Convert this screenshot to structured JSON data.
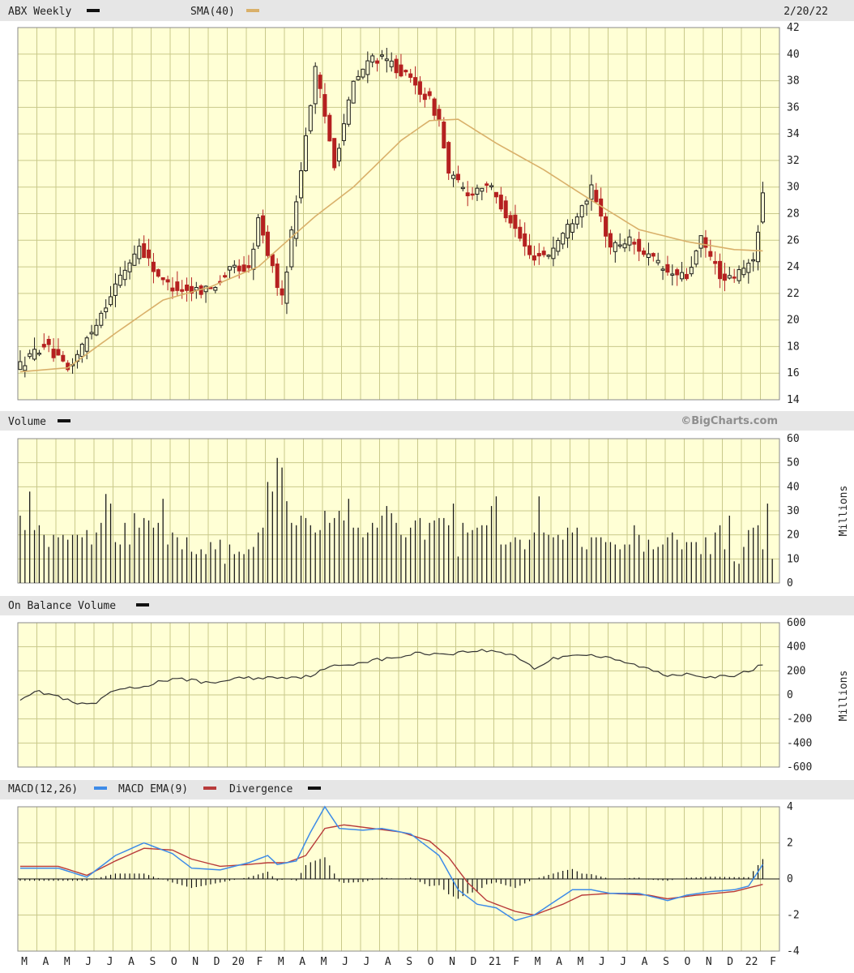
{
  "colors": {
    "up": "#1a1a1a",
    "down": "#b52020",
    "sma": "#d9b06a",
    "macd": "#3d8be8",
    "macd_ema": "#b83a3a",
    "volume": "#1a1a1a",
    "obv": "#333333",
    "plot_bg": "#ffffd5",
    "grid": "#c9c98a"
  },
  "header": {
    "symbol_label": "ABX Weekly",
    "sma_label": "SMA(40)",
    "date": "2/20/22",
    "credit": "©BigCharts.com"
  },
  "chart_data": [
    {
      "type": "candlestick",
      "title": "ABX Weekly",
      "overlay": "SMA(40)",
      "x_labels": [
        "M",
        "A",
        "M",
        "J",
        "J",
        "A",
        "S",
        "O",
        "N",
        "D",
        "20",
        "F",
        "M",
        "A",
        "M",
        "J",
        "J",
        "A",
        "S",
        "O",
        "N",
        "D",
        "21",
        "F",
        "M",
        "A",
        "M",
        "J",
        "J",
        "A",
        "S",
        "O",
        "N",
        "D",
        "22",
        "F"
      ],
      "y_ticks": [
        14,
        16,
        18,
        20,
        22,
        24,
        26,
        28,
        30,
        32,
        34,
        36,
        38,
        40,
        42
      ],
      "ylim": [
        14,
        42
      ],
      "grid": true,
      "series": [
        {
          "name": "ABX Weekly",
          "anchors": [
            [
              0,
              16.6
            ],
            [
              5,
              18.2
            ],
            [
              10,
              16.2
            ],
            [
              15,
              19.2
            ],
            [
              20,
              22.6
            ],
            [
              25,
              25.6
            ],
            [
              30,
              22.8
            ],
            [
              35,
              22.2
            ],
            [
              40,
              22.4
            ],
            [
              45,
              24.0
            ],
            [
              48,
              23.7
            ],
            [
              50,
              27.5
            ],
            [
              55,
              21.5
            ],
            [
              59,
              31.5
            ],
            [
              62,
              38.8
            ],
            [
              66,
              31.8
            ],
            [
              70,
              37.8
            ],
            [
              74,
              39.8
            ],
            [
              78,
              39.3
            ],
            [
              82,
              38.0
            ],
            [
              86,
              36.5
            ],
            [
              88,
              35.0
            ],
            [
              90,
              31.0
            ],
            [
              94,
              29.5
            ],
            [
              98,
              30.3
            ],
            [
              103,
              27.5
            ],
            [
              107,
              24.8
            ],
            [
              111,
              25.0
            ],
            [
              115,
              27.0
            ],
            [
              120,
              29.8
            ],
            [
              124,
              25.5
            ],
            [
              128,
              26.0
            ],
            [
              132,
              24.8
            ],
            [
              136,
              23.5
            ],
            [
              140,
              23.2
            ],
            [
              143,
              26.0
            ],
            [
              148,
              22.8
            ],
            [
              152,
              23.8
            ],
            [
              154,
              24.5
            ],
            [
              156,
              29.5
            ]
          ]
        },
        {
          "name": "SMA(40)",
          "anchors": [
            [
              0,
              16.1
            ],
            [
              10,
              16.4
            ],
            [
              20,
              19.0
            ],
            [
              30,
              21.5
            ],
            [
              40,
              22.5
            ],
            [
              50,
              24.0
            ],
            [
              55,
              25.6
            ],
            [
              62,
              27.8
            ],
            [
              70,
              30.0
            ],
            [
              80,
              33.5
            ],
            [
              86,
              35.0
            ],
            [
              92,
              35.1
            ],
            [
              100,
              33.3
            ],
            [
              110,
              31.3
            ],
            [
              120,
              29.0
            ],
            [
              130,
              26.8
            ],
            [
              140,
              25.9
            ],
            [
              150,
              25.3
            ],
            [
              156,
              25.2
            ]
          ]
        }
      ]
    },
    {
      "type": "bar",
      "title": "Volume",
      "y_ticks": [
        0,
        10,
        20,
        30,
        40,
        50,
        60
      ],
      "ylim": [
        0,
        60
      ],
      "unit": "Millions",
      "values": [
        28,
        22,
        38,
        22,
        24,
        20,
        15,
        20,
        19,
        20,
        18,
        20,
        20,
        19,
        22,
        16,
        21,
        25,
        37,
        33,
        17,
        16,
        25,
        16,
        29,
        23,
        27,
        26,
        23,
        25,
        35,
        16,
        21,
        19,
        14,
        19,
        13,
        12,
        14,
        12,
        17,
        14,
        18,
        8,
        16,
        12,
        13,
        12,
        14,
        15,
        21,
        23,
        42,
        38,
        52,
        48,
        34,
        25,
        24,
        28,
        27,
        24,
        21,
        22,
        30,
        25,
        27,
        30,
        26,
        35,
        23,
        23,
        19,
        21,
        25,
        23,
        28,
        32,
        29,
        25,
        20,
        19,
        23,
        26,
        27,
        18,
        25,
        26,
        27,
        27,
        24,
        33,
        11,
        25,
        21,
        22,
        23,
        24,
        24,
        32,
        36,
        16,
        16,
        17,
        19,
        18,
        14,
        18,
        21,
        36,
        21,
        20,
        19,
        20,
        18,
        23,
        21,
        23,
        15,
        14,
        19,
        19,
        19,
        17,
        17,
        16,
        14,
        16,
        16,
        24,
        20,
        13,
        18,
        14,
        15,
        16,
        19,
        21,
        18,
        14,
        17,
        17,
        17,
        12,
        19,
        12,
        21,
        24,
        14,
        28,
        9,
        8,
        15,
        22,
        23,
        24,
        14,
        33,
        10
      ]
    },
    {
      "type": "line",
      "title": "On Balance Volume",
      "y_ticks": [
        -600,
        -400,
        -200,
        0,
        200,
        400,
        600
      ],
      "ylim": [
        -600,
        600
      ],
      "unit": "Millions",
      "anchors": [
        [
          0,
          -30
        ],
        [
          3,
          30
        ],
        [
          7,
          0
        ],
        [
          12,
          -80
        ],
        [
          16,
          -70
        ],
        [
          20,
          40
        ],
        [
          25,
          60
        ],
        [
          30,
          120
        ],
        [
          36,
          130
        ],
        [
          40,
          90
        ],
        [
          45,
          140
        ],
        [
          50,
          140
        ],
        [
          55,
          150
        ],
        [
          60,
          150
        ],
        [
          66,
          240
        ],
        [
          70,
          260
        ],
        [
          74,
          290
        ],
        [
          78,
          300
        ],
        [
          80,
          320
        ],
        [
          84,
          350
        ],
        [
          88,
          340
        ],
        [
          92,
          350
        ],
        [
          96,
          370
        ],
        [
          100,
          360
        ],
        [
          104,
          330
        ],
        [
          108,
          220
        ],
        [
          112,
          300
        ],
        [
          116,
          340
        ],
        [
          120,
          330
        ],
        [
          124,
          300
        ],
        [
          130,
          240
        ],
        [
          136,
          160
        ],
        [
          140,
          180
        ],
        [
          145,
          150
        ],
        [
          150,
          150
        ],
        [
          156,
          250
        ]
      ]
    },
    {
      "type": "line",
      "title": "MACD(12,26)",
      "y_ticks": [
        -4,
        -2,
        0,
        2,
        4
      ],
      "ylim": [
        -4,
        4
      ],
      "series": [
        {
          "name": "MACD(12,26)",
          "anchors": [
            [
              0,
              0.6
            ],
            [
              8,
              0.6
            ],
            [
              14,
              0.1
            ],
            [
              20,
              1.3
            ],
            [
              26,
              2.0
            ],
            [
              32,
              1.4
            ],
            [
              36,
              0.6
            ],
            [
              42,
              0.5
            ],
            [
              48,
              0.9
            ],
            [
              52,
              1.3
            ],
            [
              54,
              0.8
            ],
            [
              58,
              1.0
            ],
            [
              61,
              2.6
            ],
            [
              64,
              4.0
            ],
            [
              67,
              2.8
            ],
            [
              72,
              2.7
            ],
            [
              76,
              2.8
            ],
            [
              82,
              2.5
            ],
            [
              88,
              1.3
            ],
            [
              92,
              -0.6
            ],
            [
              96,
              -1.4
            ],
            [
              100,
              -1.6
            ],
            [
              104,
              -2.3
            ],
            [
              108,
              -2.0
            ],
            [
              112,
              -1.3
            ],
            [
              116,
              -0.6
            ],
            [
              120,
              -0.6
            ],
            [
              124,
              -0.8
            ],
            [
              130,
              -0.8
            ],
            [
              136,
              -1.2
            ],
            [
              140,
              -0.9
            ],
            [
              145,
              -0.7
            ],
            [
              150,
              -0.6
            ],
            [
              153,
              -0.4
            ],
            [
              156,
              0.8
            ]
          ]
        },
        {
          "name": "MACD EMA(9)",
          "anchors": [
            [
              0,
              0.7
            ],
            [
              8,
              0.7
            ],
            [
              14,
              0.2
            ],
            [
              20,
              1.0
            ],
            [
              26,
              1.7
            ],
            [
              32,
              1.6
            ],
            [
              36,
              1.1
            ],
            [
              42,
              0.7
            ],
            [
              48,
              0.8
            ],
            [
              52,
              0.9
            ],
            [
              56,
              0.9
            ],
            [
              60,
              1.3
            ],
            [
              64,
              2.8
            ],
            [
              68,
              3.0
            ],
            [
              74,
              2.8
            ],
            [
              80,
              2.6
            ],
            [
              86,
              2.1
            ],
            [
              90,
              1.2
            ],
            [
              94,
              -0.2
            ],
            [
              98,
              -1.2
            ],
            [
              104,
              -1.8
            ],
            [
              108,
              -2.0
            ],
            [
              114,
              -1.4
            ],
            [
              118,
              -0.9
            ],
            [
              124,
              -0.8
            ],
            [
              132,
              -0.9
            ],
            [
              136,
              -1.1
            ],
            [
              142,
              -0.9
            ],
            [
              150,
              -0.7
            ],
            [
              156,
              -0.3
            ]
          ]
        },
        {
          "name": "Divergence"
        }
      ]
    }
  ]
}
